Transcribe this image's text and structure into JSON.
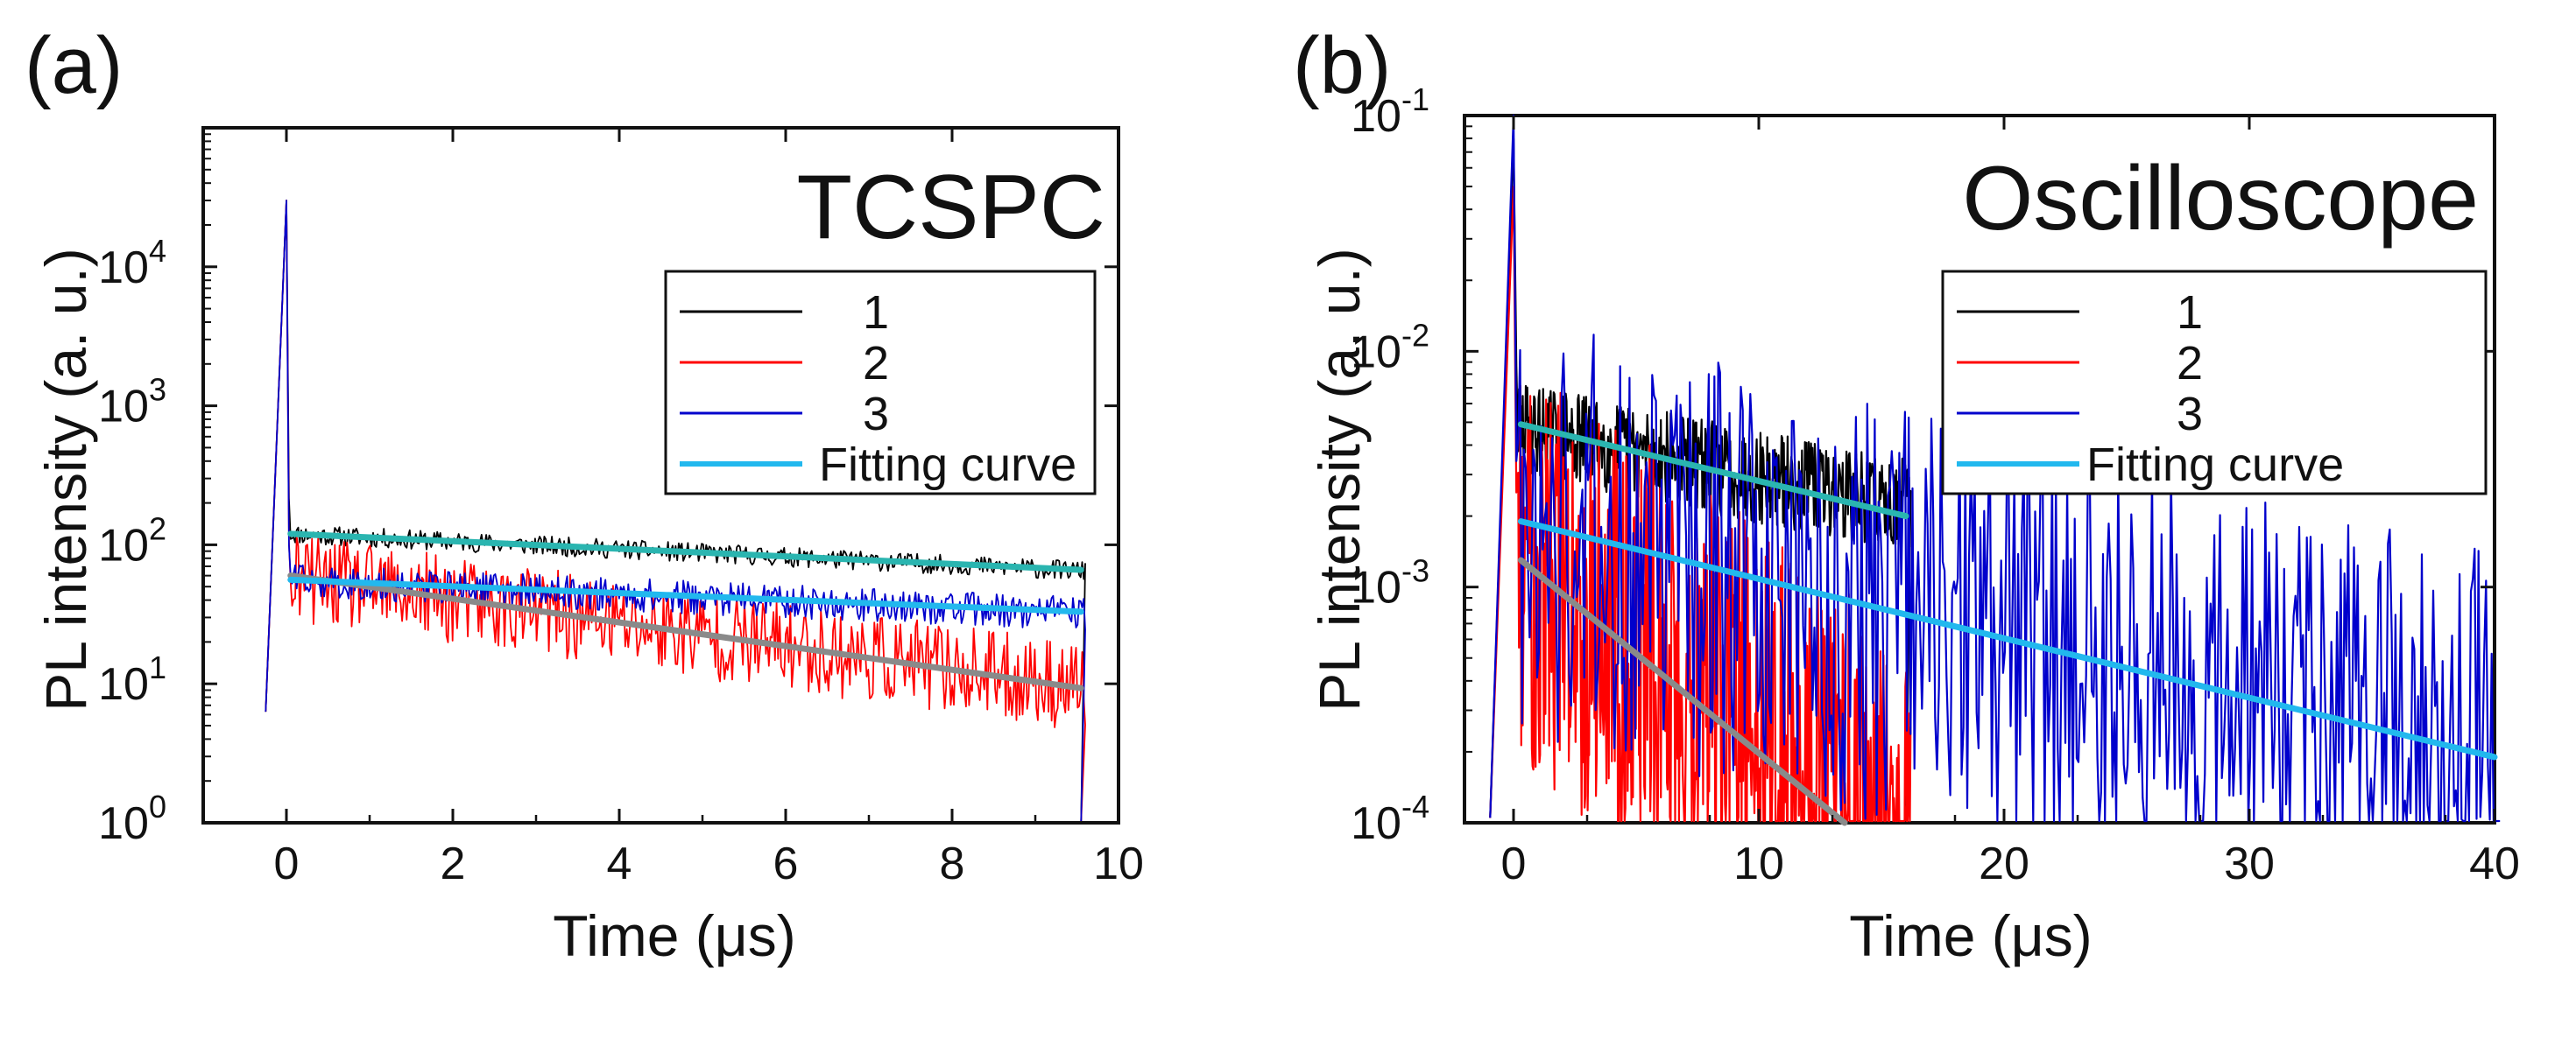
{
  "chart_data": [
    {
      "panel": "(a)",
      "type": "line",
      "title": "TCSPC",
      "xlabel": "Time (μs)",
      "ylabel": "PL intensity (a. u.)",
      "xlim": [
        -1,
        10
      ],
      "ylim": [
        1,
        100000
      ],
      "yscale": "log",
      "xticks": [
        0,
        2,
        4,
        6,
        8,
        10
      ],
      "xtick_labels": [
        "0",
        "2",
        "4",
        "6",
        "8",
        "10"
      ],
      "yticks": [
        1,
        10,
        100,
        1000,
        10000
      ],
      "ytick_labels": [
        {
          "base": "10",
          "exp": "0"
        },
        {
          "base": "10",
          "exp": "1"
        },
        {
          "base": "10",
          "exp": "2"
        },
        {
          "base": "10",
          "exp": "3"
        },
        {
          "base": "10",
          "exp": "4"
        }
      ],
      "legend": [
        "1",
        "2",
        "3",
        "Fitting curve"
      ],
      "legend_position": "upper-right",
      "series": [
        {
          "name": "1",
          "color": "#000000",
          "peak": 30000,
          "start": 120,
          "end": 65,
          "t_end": 9.55,
          "noise": 0.07
        },
        {
          "name": "2",
          "color": "#ff0000",
          "peak": 30000,
          "start": 58,
          "end": 9.5,
          "t_end": 9.55,
          "noise": 0.32
        },
        {
          "name": "3",
          "color": "#0000cc",
          "peak": 30000,
          "start": 55,
          "end": 32,
          "t_end": 9.55,
          "noise": 0.12
        }
      ],
      "fits": [
        {
          "series": "1",
          "color": "#2ab5b0",
          "x": [
            0.05,
            9.55
          ],
          "y": [
            120,
            66
          ]
        },
        {
          "series": "2",
          "color": "#8a8a8a",
          "x": [
            0.05,
            9.55
          ],
          "y": [
            60,
            9.3
          ]
        },
        {
          "series": "3",
          "color": "#22b8ee",
          "x": [
            0.05,
            9.55
          ],
          "y": [
            56,
            33
          ]
        }
      ]
    },
    {
      "panel": "(b)",
      "type": "line",
      "title": "Oscilloscope",
      "xlabel": "Time (μs)",
      "ylabel": "PL intensity (a. u.)",
      "xlim": [
        -2,
        40
      ],
      "ylim": [
        0.0001,
        0.1
      ],
      "yscale": "log",
      "xticks": [
        0,
        10,
        20,
        30,
        40
      ],
      "xtick_labels": [
        "0",
        "10",
        "20",
        "30",
        "40"
      ],
      "yticks": [
        0.0001,
        0.001,
        0.01,
        0.1
      ],
      "ytick_labels": [
        {
          "base": "10",
          "exp": "-4"
        },
        {
          "base": "10",
          "exp": "-3"
        },
        {
          "base": "10",
          "exp": "-2"
        },
        {
          "base": "10",
          "exp": "-1"
        }
      ],
      "legend": [
        "1",
        "2",
        "3",
        "Fitting curve"
      ],
      "legend_position": "upper-right",
      "series": [
        {
          "name": "1",
          "color": "#000000",
          "peak": 0.08,
          "start": 0.0048,
          "end": 0.0022,
          "t_end": 16,
          "noise": 0.2
        },
        {
          "name": "2",
          "color": "#ff0000",
          "peak": 0.05,
          "start": 0.0014,
          "end": 8e-05,
          "t_end": 16,
          "noise": 0.9
        },
        {
          "name": "3",
          "color": "#0000cc",
          "peak": 0.1,
          "start": 0.0019,
          "end": 0.00018,
          "t_end": 40,
          "noise": 0.9
        }
      ],
      "fits": [
        {
          "series": "1",
          "color": "#2ab5b0",
          "x": [
            0.3,
            16
          ],
          "y": [
            0.0049,
            0.002
          ]
        },
        {
          "series": "2",
          "color": "#8a8a8a",
          "x": [
            0.3,
            13.5
          ],
          "y": [
            0.0013,
            0.0001
          ]
        },
        {
          "series": "3",
          "color": "#22b8ee",
          "x": [
            0.3,
            40
          ],
          "y": [
            0.0019,
            0.00019
          ]
        }
      ]
    }
  ]
}
